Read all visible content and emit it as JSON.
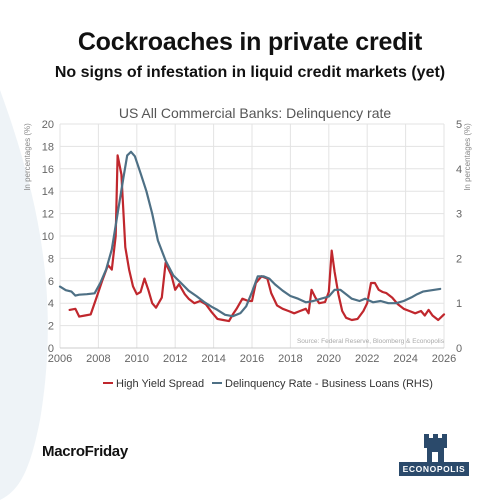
{
  "header": {
    "headline": "Cockroaches in private credit",
    "subheadline": "No signs of infestation in liquid credit markets (yet)"
  },
  "footer": {
    "brand": "MacroFriday",
    "logo_text": "ECONOPOLIS"
  },
  "chart_data": {
    "type": "line",
    "title": "US All Commercial Banks: Delinquency rate",
    "ylabel_left": "In percentages (%)",
    "ylabel_right": "In percentages (%)",
    "source": "Source: Federal Reserve, Bloomberg & Econopolis",
    "xlim": [
      2006,
      2026
    ],
    "ylim_left": [
      0,
      20
    ],
    "ylim_right": [
      0,
      5
    ],
    "x_ticks": [
      "2006",
      "2008",
      "2010",
      "2012",
      "2014",
      "2016",
      "2018",
      "2020",
      "2022",
      "2024",
      "2026"
    ],
    "y_left_ticks": [
      "0",
      "2",
      "4",
      "6",
      "8",
      "10",
      "12",
      "14",
      "16",
      "18",
      "20"
    ],
    "y_right_ticks": [
      "0",
      "1",
      "2",
      "3",
      "4",
      "5"
    ],
    "grid": true,
    "legend_position": "bottom",
    "colors": {
      "high_yield": "#c0272d",
      "delinquency": "#4e7085",
      "grid": "#e3e3e3",
      "text": "#666666"
    },
    "series": [
      {
        "name": "High Yield Spread",
        "axis": "left",
        "x": [
          2006.5,
          2006.8,
          2007.0,
          2007.3,
          2007.6,
          2007.9,
          2008.2,
          2008.5,
          2008.7,
          2008.9,
          2009.0,
          2009.2,
          2009.4,
          2009.6,
          2009.8,
          2010.0,
          2010.2,
          2010.4,
          2010.6,
          2010.8,
          2011.0,
          2011.3,
          2011.5,
          2011.8,
          2012.0,
          2012.2,
          2012.5,
          2012.7,
          2013.0,
          2013.3,
          2013.6,
          2013.9,
          2014.2,
          2014.5,
          2014.8,
          2015.0,
          2015.2,
          2015.5,
          2015.8,
          2016.0,
          2016.2,
          2016.5,
          2016.8,
          2017.0,
          2017.3,
          2017.6,
          2017.9,
          2018.2,
          2018.5,
          2018.8,
          2018.95,
          2019.1,
          2019.3,
          2019.5,
          2019.8,
          2020.0,
          2020.15,
          2020.3,
          2020.5,
          2020.7,
          2020.9,
          2021.2,
          2021.5,
          2021.8,
          2022.0,
          2022.2,
          2022.4,
          2022.6,
          2022.8,
          2023.0,
          2023.3,
          2023.6,
          2023.9,
          2024.2,
          2024.5,
          2024.8,
          2025.0,
          2025.2,
          2025.4,
          2025.7,
          2026.0
        ],
        "values": [
          3.4,
          3.5,
          2.8,
          2.9,
          3.0,
          4.5,
          6.0,
          7.4,
          7.0,
          10.0,
          17.2,
          15.5,
          9.0,
          7.0,
          5.5,
          4.8,
          5.0,
          6.2,
          5.2,
          4.0,
          3.6,
          4.5,
          7.6,
          6.5,
          5.2,
          5.7,
          4.8,
          4.4,
          4.0,
          4.2,
          3.9,
          3.2,
          2.6,
          2.5,
          2.4,
          3.0,
          3.5,
          4.4,
          4.2,
          4.2,
          5.8,
          6.4,
          6.2,
          4.9,
          3.8,
          3.5,
          3.3,
          3.1,
          3.3,
          3.5,
          3.1,
          5.2,
          4.5,
          4.0,
          4.1,
          5.0,
          8.7,
          6.8,
          4.8,
          3.3,
          2.7,
          2.5,
          2.6,
          3.3,
          4.0,
          5.8,
          5.8,
          5.2,
          5.0,
          4.9,
          4.5,
          3.9,
          3.5,
          3.3,
          3.1,
          3.3,
          2.9,
          3.4,
          2.9,
          2.5,
          3.0
        ]
      },
      {
        "name": "Delinquency Rate - Business Loans (RHS)",
        "axis": "right",
        "x": [
          2006.0,
          2006.3,
          2006.6,
          2006.8,
          2007.0,
          2007.4,
          2007.8,
          2008.1,
          2008.4,
          2008.7,
          2009.0,
          2009.3,
          2009.5,
          2009.7,
          2009.9,
          2010.2,
          2010.5,
          2010.8,
          2011.1,
          2011.5,
          2011.9,
          2012.3,
          2012.7,
          2013.1,
          2013.5,
          2013.9,
          2014.2,
          2014.6,
          2015.0,
          2015.4,
          2015.7,
          2016.0,
          2016.3,
          2016.6,
          2016.9,
          2017.2,
          2017.6,
          2018.0,
          2018.4,
          2018.8,
          2019.2,
          2019.6,
          2020.0,
          2020.3,
          2020.6,
          2020.9,
          2021.2,
          2021.6,
          2021.9,
          2022.3,
          2022.7,
          2023.1,
          2023.5,
          2023.9,
          2024.3,
          2024.6,
          2024.9,
          2025.2,
          2025.5,
          2025.8
        ],
        "values": [
          1.37,
          1.29,
          1.26,
          1.17,
          1.19,
          1.2,
          1.22,
          1.45,
          1.75,
          2.2,
          3.0,
          3.8,
          4.3,
          4.38,
          4.28,
          3.9,
          3.5,
          3.0,
          2.4,
          1.95,
          1.62,
          1.45,
          1.28,
          1.16,
          1.03,
          0.92,
          0.85,
          0.74,
          0.71,
          0.78,
          0.93,
          1.25,
          1.6,
          1.6,
          1.55,
          1.42,
          1.28,
          1.16,
          1.1,
          1.02,
          1.05,
          1.1,
          1.15,
          1.3,
          1.3,
          1.2,
          1.1,
          1.05,
          1.1,
          1.02,
          1.05,
          1.0,
          1.0,
          1.05,
          1.13,
          1.2,
          1.26,
          1.28,
          1.3,
          1.32
        ]
      }
    ]
  }
}
